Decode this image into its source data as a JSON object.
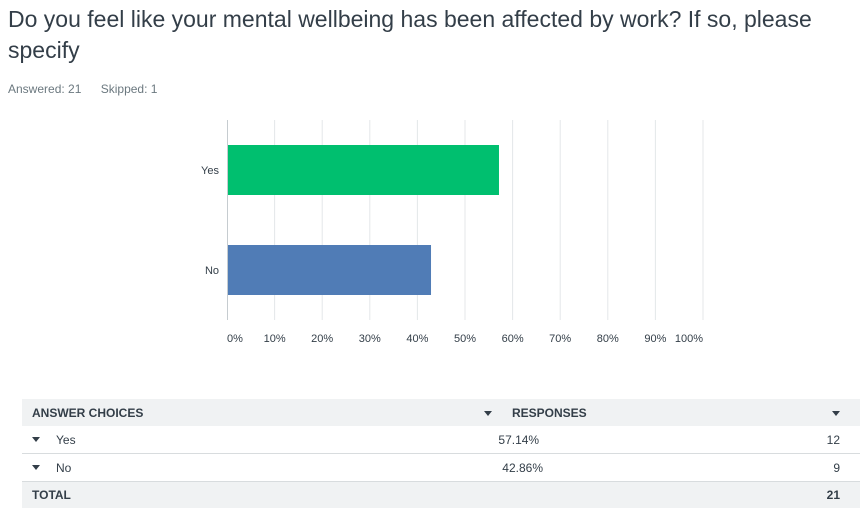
{
  "question": {
    "title": "Do you feel like your mental wellbeing has been affected by work? If so, please specify",
    "answered": "Answered: 21",
    "skipped": "Skipped: 1"
  },
  "chart_data": {
    "type": "bar",
    "orientation": "horizontal",
    "categories": [
      "Yes",
      "No"
    ],
    "values": [
      57.14,
      42.86
    ],
    "colors": [
      "#00bf6f",
      "#507cb6"
    ],
    "xlim": [
      0,
      100
    ],
    "xticks": [
      "0%",
      "10%",
      "20%",
      "30%",
      "40%",
      "50%",
      "60%",
      "70%",
      "80%",
      "90%",
      "100%"
    ],
    "grid": true
  },
  "table": {
    "headers": [
      "ANSWER CHOICES",
      "RESPONSES"
    ],
    "rows": [
      {
        "choice": "Yes",
        "percent": "57.14%",
        "count": "12"
      },
      {
        "choice": "No",
        "percent": "42.86%",
        "count": "9"
      }
    ],
    "total_label": "TOTAL",
    "total_count": "21"
  }
}
